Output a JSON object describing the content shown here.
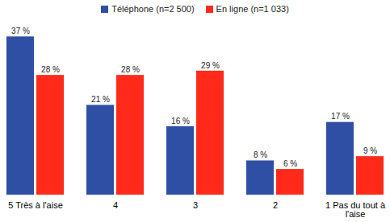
{
  "chart_data": {
    "type": "bar",
    "categories": [
      "5 Très à l'aise",
      "4",
      "3",
      "2",
      "1 Pas du tout à l'aise"
    ],
    "series": [
      {
        "name": "Téléphone (n=2 500)",
        "color": "#2e4fa3",
        "values": [
          37,
          21,
          16,
          8,
          17
        ],
        "value_labels": [
          "37 %",
          "21 %",
          "16 %",
          "8 %",
          "17 %"
        ]
      },
      {
        "name": "En ligne (n=1 033)",
        "color": "#ff2a1a",
        "values": [
          28,
          28,
          29,
          6,
          9
        ],
        "value_labels": [
          "28 %",
          "28 %",
          "29 %",
          "6 %",
          "9 %"
        ]
      }
    ],
    "ylim": [
      0,
      38
    ],
    "data_labels": true,
    "tick_labels": "x",
    "legend": "top",
    "grid": false
  }
}
